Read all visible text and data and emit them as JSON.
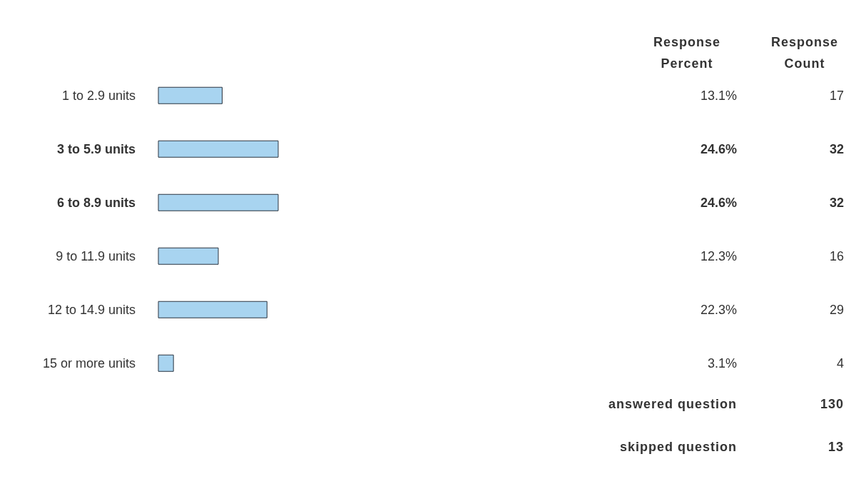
{
  "chart_data": [
    {
      "type": "bar",
      "orientation": "horizontal",
      "categories": [
        "1 to 2.9 units",
        "3 to 5.9 units",
        "6 to 8.9 units",
        "9 to 11.9 units",
        "12 to 14.9 units",
        "15 or more units"
      ],
      "series": [
        {
          "name": "Response Percent",
          "color": "#a8d4f0",
          "values": [
            13.1,
            24.6,
            24.6,
            12.3,
            22.3,
            3.1
          ],
          "value_labels": [
            "13.1%",
            "24.6%",
            "24.6%",
            "12.3%",
            "22.3%",
            "3.1%"
          ]
        }
      ],
      "tick_labels": false,
      "annotations": [
        "answered question",
        "skipped question"
      ]
    },
    {
      "type": "other",
      "title": "Response Count",
      "categories": [
        null,
        null,
        null,
        null,
        null,
        null
      ],
      "values": [
        17,
        32,
        32,
        16,
        29,
        4
      ],
      "data_labels": true,
      "annotations": [
        "130",
        "13"
      ]
    }
  ]
}
